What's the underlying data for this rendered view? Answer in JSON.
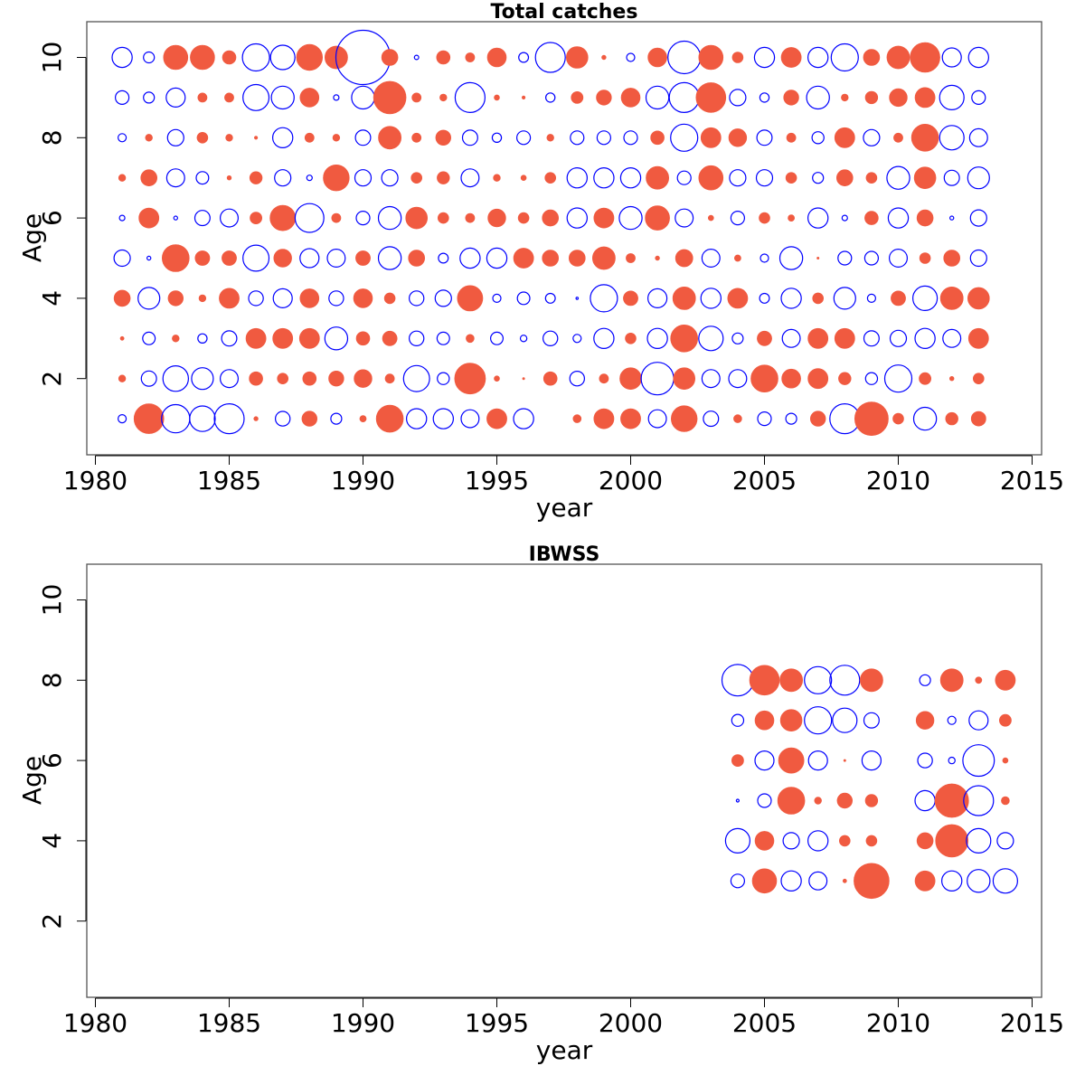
{
  "chart_data": [
    {
      "type": "scatter",
      "subtype": "bubble-residuals",
      "title": "Total catches",
      "xlabel": "year",
      "ylabel": "Age",
      "xlim": [
        1980,
        2015
      ],
      "ylim": [
        0,
        11
      ],
      "xticks": [
        1980,
        1985,
        1990,
        1995,
        2000,
        2005,
        2010,
        2015
      ],
      "yticks": [
        2,
        4,
        6,
        8,
        10
      ],
      "colors": {
        "positive": "#f05a40",
        "negative": "#0000ff"
      },
      "note": "size = magnitude 0-1; p = filled (positive), n = open (negative)",
      "years": [
        1981,
        1982,
        1983,
        1984,
        1985,
        1986,
        1987,
        1988,
        1989,
        1990,
        1991,
        1992,
        1993,
        1994,
        1995,
        1996,
        1997,
        1998,
        1999,
        2000,
        2001,
        2002,
        2003,
        2004,
        2005,
        2006,
        2007,
        2008,
        2009,
        2010,
        2011,
        2012,
        2013
      ],
      "ages": [
        {
          "age": 10,
          "cells": [
            "n0.37",
            "n0.2",
            "p0.45",
            "p0.45",
            "p0.25",
            "n0.5",
            "n0.45",
            "p0.48",
            "p0.42",
            "n1.0",
            "p0.3",
            "n0.08",
            "p0.25",
            "p0.17",
            "p0.35",
            "n0.18",
            "n0.55",
            "p0.4",
            "p0.08",
            "n0.15",
            "p0.35",
            "n0.6",
            "p0.45",
            "p0.2",
            "n0.37",
            "p0.37",
            "n0.37",
            "n0.5",
            "p0.3",
            "p0.42",
            "p0.55",
            "n0.35",
            "n0.37"
          ]
        },
        {
          "age": 9,
          "cells": [
            "n0.25",
            "n0.2",
            "n0.35",
            "p0.17",
            "p0.17",
            "n0.48",
            "n0.42",
            "p0.35",
            "n0.1",
            "n0.42",
            "p0.6",
            "p0.17",
            "p0.13",
            "n0.55",
            "p0.1",
            "p0.06",
            "n0.17",
            "p0.22",
            "p0.28",
            "p0.35",
            "n0.42",
            "n0.55",
            "p0.55",
            "n0.3",
            "n0.17",
            "p0.28",
            "n0.42",
            "p0.13",
            "p0.23",
            "p0.33",
            "p0.37",
            "n0.45",
            "n0.25"
          ]
        },
        {
          "age": 8,
          "cells": [
            "n0.15",
            "p0.13",
            "n0.3",
            "p0.2",
            "p0.13",
            "p0.06",
            "n0.37",
            "p0.17",
            "p0.13",
            "n0.28",
            "p0.42",
            "p0.17",
            "p0.28",
            "n0.28",
            "n0.17",
            "n0.25",
            "p0.13",
            "n0.25",
            "n0.25",
            "n0.25",
            "p0.25",
            "n0.5",
            "p0.37",
            "p0.33",
            "n0.28",
            "p0.17",
            "n0.22",
            "p0.37",
            "n0.3",
            "p0.17",
            "p0.5",
            "n0.45",
            "n0.33"
          ]
        },
        {
          "age": 7,
          "cells": [
            "p0.13",
            "p0.3",
            "n0.33",
            "n0.23",
            "p0.08",
            "p0.23",
            "n0.3",
            "n0.1",
            "p0.48",
            "n0.3",
            "n0.3",
            "p0.2",
            "p0.23",
            "n0.33",
            "p0.13",
            "p0.1",
            "p0.2",
            "n0.37",
            "n0.37",
            "n0.37",
            "p0.42",
            "n0.25",
            "p0.45",
            "n0.3",
            "n0.3",
            "p0.2",
            "n0.2",
            "p0.3",
            "p0.2",
            "n0.42",
            "p0.4",
            "n0.28",
            "n0.4"
          ]
        },
        {
          "age": 6,
          "cells": [
            "n0.1",
            "p0.37",
            "n0.07",
            "n0.28",
            "n0.33",
            "p0.22",
            "p0.47",
            "n0.53",
            "p0.17",
            "n0.25",
            "n0.42",
            "p0.4",
            "p0.2",
            "p0.17",
            "p0.33",
            "p0.2",
            "p0.3",
            "n0.37",
            "p0.37",
            "n0.42",
            "p0.45",
            "n0.33",
            "p0.1",
            "n0.25",
            "p0.2",
            "p0.12",
            "n0.37",
            "n0.1",
            "p0.25",
            "n0.37",
            "p0.3",
            "n0.07",
            "n0.3"
          ]
        },
        {
          "age": 5,
          "cells": [
            "n0.3",
            "n0.07",
            "p0.5",
            "p0.27",
            "p0.27",
            "n0.48",
            "p0.33",
            "n0.35",
            "n0.33",
            "p0.27",
            "n0.42",
            "p0.3",
            "n0.18",
            "n0.37",
            "n0.37",
            "p0.37",
            "p0.3",
            "p0.3",
            "p0.42",
            "p0.17",
            "p0.08",
            "p0.32",
            "n0.33",
            "p0.12",
            "n0.15",
            "n0.42",
            "p0.04",
            "n0.25",
            "n0.25",
            "n0.33",
            "p0.2",
            "p0.3",
            "n0.3"
          ]
        },
        {
          "age": 4,
          "cells": [
            "p0.3",
            "n0.4",
            "p0.28",
            "p0.13",
            "p0.37",
            "n0.27",
            "n0.35",
            "p0.35",
            "n0.27",
            "p0.35",
            "p0.2",
            "n0.27",
            "n0.3",
            "p0.47",
            "n0.15",
            "n0.23",
            "n0.18",
            "n0.03",
            "n0.5",
            "p0.27",
            "n0.35",
            "p0.42",
            "n0.37",
            "p0.37",
            "n0.18",
            "n0.37",
            "p0.2",
            "n0.4",
            "n0.15",
            "p0.27",
            "n0.45",
            "p0.42",
            "p0.4"
          ]
        },
        {
          "age": 3,
          "cells": [
            "p0.07",
            "n0.23",
            "p0.13",
            "n0.17",
            "n0.28",
            "p0.37",
            "p0.37",
            "p0.37",
            "n0.42",
            "p0.25",
            "p0.27",
            "n0.27",
            "n0.23",
            "p0.15",
            "n0.23",
            "n0.12",
            "n0.27",
            "n0.15",
            "n0.37",
            "p0.2",
            "n0.37",
            "p0.5",
            "n0.45",
            "n0.2",
            "p0.27",
            "n0.33",
            "p0.37",
            "p0.37",
            "n0.28",
            "n0.3",
            "n0.37",
            "n0.33",
            "p0.37"
          ]
        },
        {
          "age": 2,
          "cells": [
            "p0.13",
            "n0.28",
            "n0.47",
            "n0.4",
            "n0.33",
            "p0.25",
            "p0.2",
            "p0.25",
            "p0.28",
            "p0.33",
            "p0.17",
            "n0.48",
            "n0.22",
            "p0.57",
            "p0.1",
            "p0.04",
            "p0.25",
            "n0.27",
            "p0.17",
            "p0.4",
            "n0.6",
            "p0.4",
            "n0.33",
            "n0.33",
            "p0.5",
            "p0.35",
            "p0.37",
            "p0.23",
            "n0.22",
            "n0.5",
            "p0.22",
            "p0.08",
            "p0.2"
          ]
        },
        {
          "age": 1,
          "cells": [
            "n0.15",
            "p0.55",
            "n0.52",
            "n0.47",
            "n0.55",
            "p0.08",
            "n0.27",
            "p0.28",
            "n0.2",
            "p0.12",
            "p0.5",
            "n0.37",
            "n0.37",
            "n0.33",
            "p0.37",
            "n0.37",
            "",
            "p0.15",
            "p0.37",
            "p0.37",
            "n0.33",
            "p0.48",
            "n0.28",
            "p0.15",
            "n0.25",
            "n0.2",
            "p0.28",
            "n0.55",
            "p0.62",
            "p0.2",
            "n0.42",
            "p0.23",
            "p0.27"
          ]
        }
      ]
    },
    {
      "type": "scatter",
      "subtype": "bubble-residuals",
      "title": "IBWSS",
      "xlabel": "year",
      "ylabel": "Age",
      "xlim": [
        1980,
        2015
      ],
      "ylim": [
        0,
        11
      ],
      "xticks": [
        1980,
        1985,
        1990,
        1995,
        2000,
        2005,
        2010,
        2015
      ],
      "yticks": [
        2,
        4,
        6,
        8,
        10
      ],
      "colors": {
        "positive": "#f05a40",
        "negative": "#0000ff"
      },
      "note": "size = magnitude 0-1; p = filled (positive), n = open (negative)",
      "years": [
        2004,
        2005,
        2006,
        2007,
        2008,
        2009,
        2011,
        2012,
        2013,
        2014
      ],
      "ages": [
        {
          "age": 8,
          "cells": [
            "n0.58",
            "p0.55",
            "p0.42",
            "n0.5",
            "n0.55",
            "p0.42",
            "n0.2",
            "p0.42",
            "p0.12",
            "p0.37"
          ]
        },
        {
          "age": 7,
          "cells": [
            "n0.22",
            "p0.35",
            "p0.4",
            "n0.5",
            "n0.45",
            "n0.28",
            "p0.33",
            "n0.15",
            "n0.35",
            "p0.22"
          ]
        },
        {
          "age": 6,
          "cells": [
            "p0.22",
            "n0.35",
            "p0.47",
            "n0.35",
            "p0.02",
            "n0.35",
            "n0.27",
            "n0.12",
            "n0.58",
            "p0.1"
          ]
        },
        {
          "age": 5,
          "cells": [
            "n0.05",
            "n0.25",
            "p0.5",
            "p0.13",
            "p0.28",
            "p0.23",
            "n0.37",
            "p0.62",
            "n0.55",
            "p0.15"
          ]
        },
        {
          "age": 4,
          "cells": [
            "n0.45",
            "p0.35",
            "n0.3",
            "n0.37",
            "p0.2",
            "p0.2",
            "p0.3",
            "p0.6",
            "n0.45",
            "n0.3"
          ]
        },
        {
          "age": 3,
          "cells": [
            "n0.25",
            "p0.45",
            "n0.37",
            "n0.33",
            "p0.07",
            "p0.65",
            "p0.37",
            "n0.37",
            "n0.42",
            "n0.45"
          ]
        }
      ]
    }
  ]
}
